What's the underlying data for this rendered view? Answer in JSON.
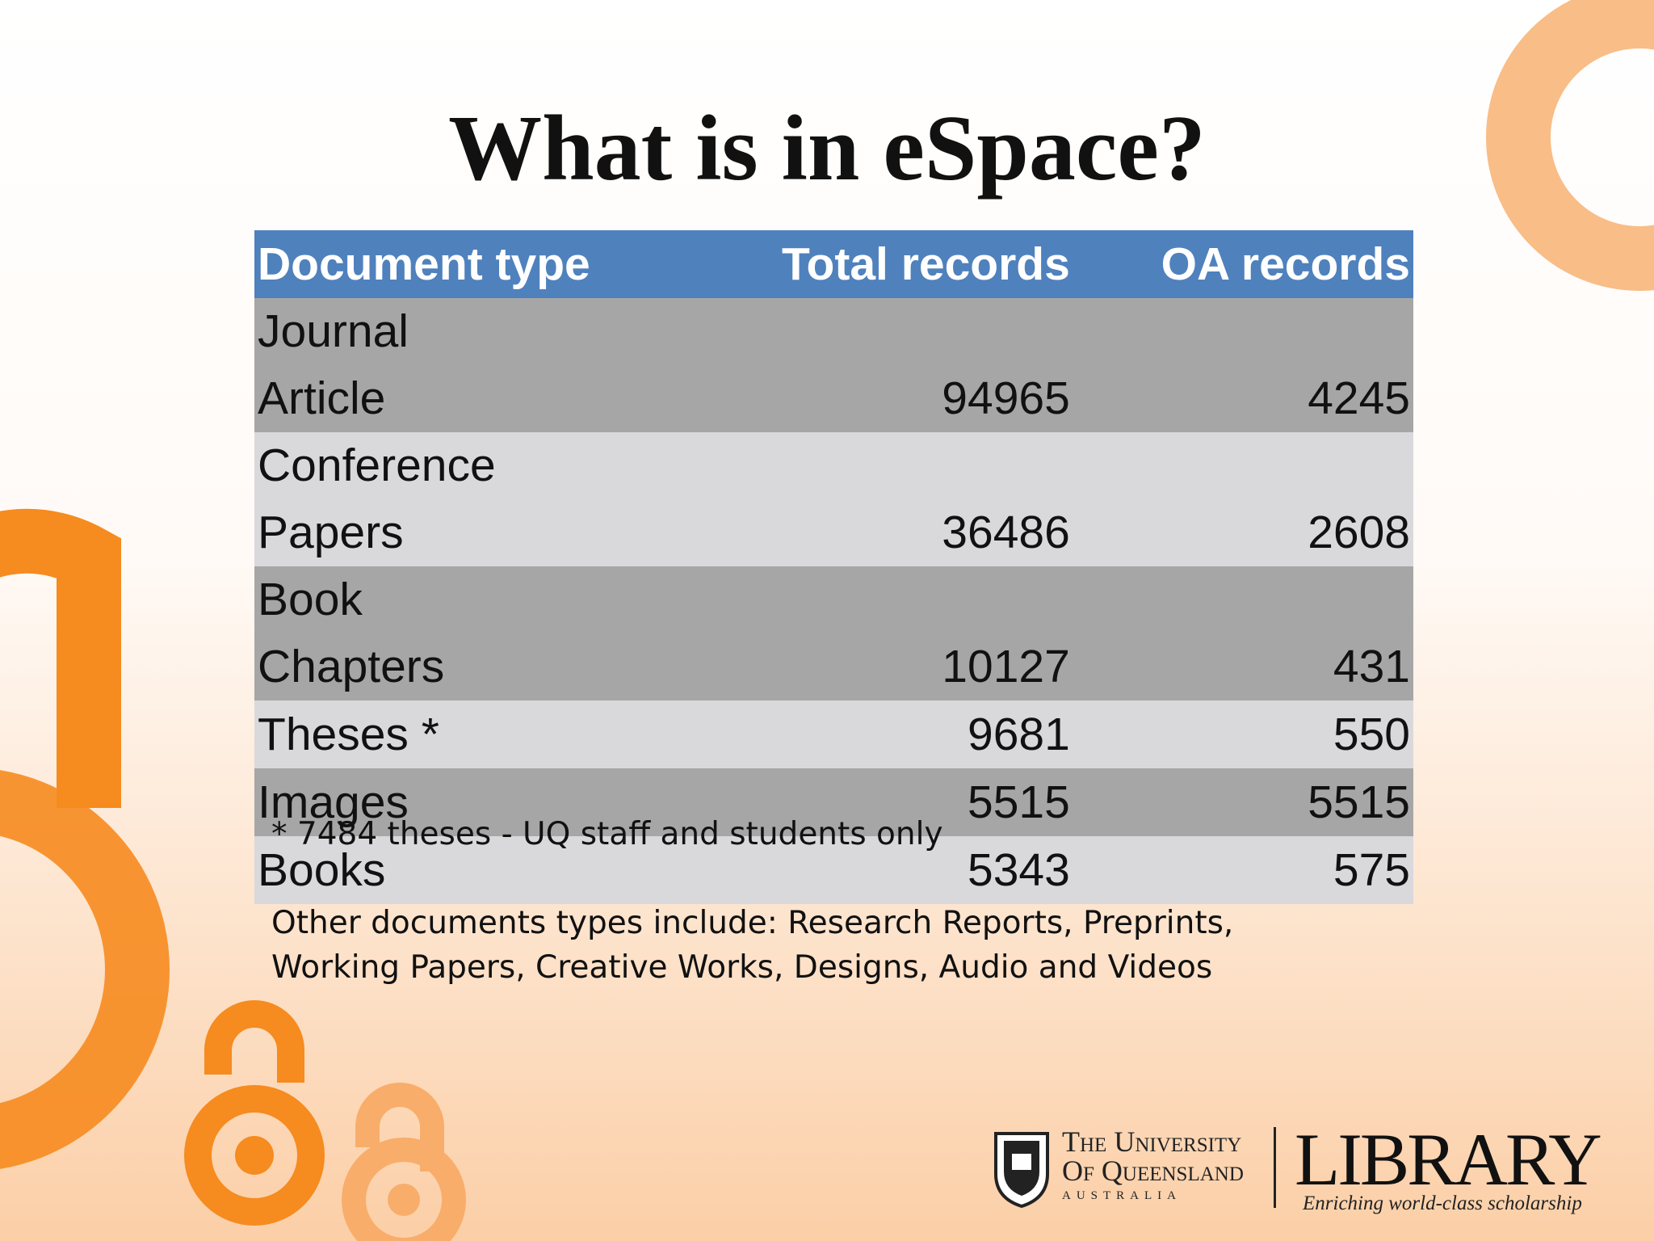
{
  "title": "What is in eSpace?",
  "table": {
    "header": [
      "Document type",
      "Total records",
      "OA records"
    ],
    "rows": [
      [
        "Journal Article",
        94965,
        4245
      ],
      [
        "Conference Papers",
        36486,
        2608
      ],
      [
        "Book Chapters",
        10127,
        431
      ],
      [
        "Theses *",
        9681,
        550
      ],
      [
        "Images",
        5515,
        5515
      ],
      [
        "Books",
        5343,
        575
      ]
    ]
  },
  "notes": [
    "* 7484 theses - UQ staff and students only",
    "Other documents types include: Research Reports, Preprints, Working Papers, Creative Works, Designs, Audio and Videos"
  ],
  "logo": {
    "university_line1": "The University",
    "university_line2": "Of Queensland",
    "country": "Australia",
    "library": "Library",
    "tagline": "Enriching world-class scholarship"
  }
}
